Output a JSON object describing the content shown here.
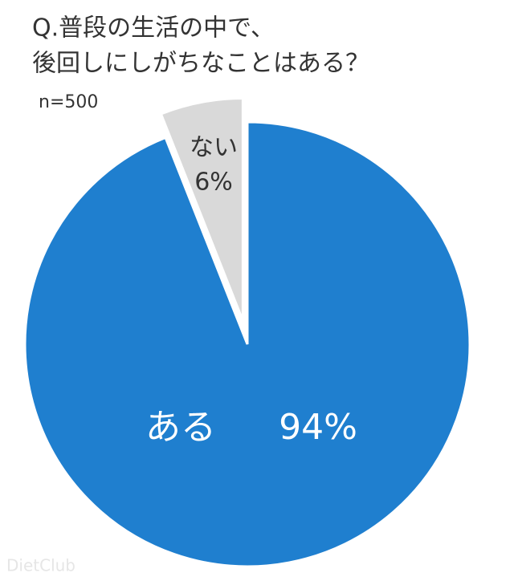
{
  "chart_data": {
    "type": "pie",
    "title": [
      "Q.普段の生活の中で、",
      "後回しにしがちなことはある？"
    ],
    "subtitle": "n=500",
    "categories": [
      "ある",
      "ない"
    ],
    "values": [
      94,
      6
    ],
    "value_labels": [
      "94%",
      "6%"
    ],
    "colors": [
      "#1f7fcf",
      "#d9d9d9"
    ],
    "watermark": "DietClub"
  }
}
